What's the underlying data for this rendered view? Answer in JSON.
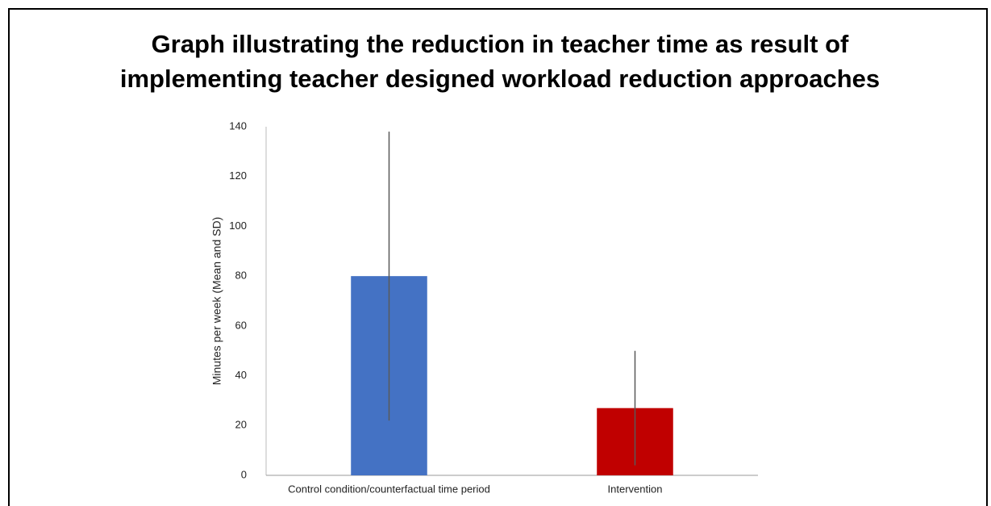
{
  "chart_data": {
    "type": "bar",
    "title": "Graph illustrating the reduction in teacher time as result of implementing teacher designed workload reduction approaches",
    "title_lines": [
      "Graph illustrating the reduction in teacher time as result of",
      "implementing teacher designed workload reduction approaches"
    ],
    "ylabel": "Minutes per week (Mean and SD)",
    "categories": [
      "Control condition/counterfactual time period",
      "Intervention"
    ],
    "values": [
      80,
      27
    ],
    "errors": [
      58,
      23
    ],
    "colors": [
      "#4472c4",
      "#c00000"
    ],
    "ylim": [
      0,
      140
    ],
    "yticks": [
      0,
      20,
      40,
      60,
      80,
      100,
      120,
      140
    ],
    "grid": false
  }
}
